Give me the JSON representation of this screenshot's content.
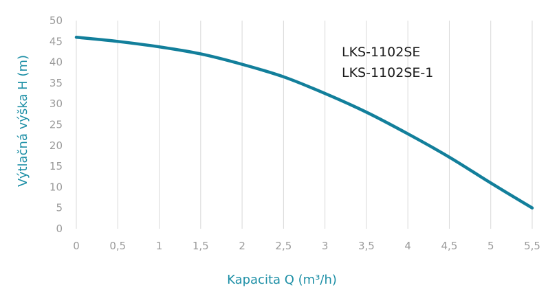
{
  "chart_data": {
    "type": "line",
    "title": "",
    "xlabel": "Kapacita Q (m³/h)",
    "ylabel": "Výtlačná výška H (m)",
    "xlim": [
      0,
      5.5
    ],
    "ylim": [
      0,
      50
    ],
    "x_ticks": [
      "0",
      "0,5",
      "1",
      "1,5",
      "2",
      "2,5",
      "3",
      "3,5",
      "4",
      "4,5",
      "5",
      "5,5"
    ],
    "y_ticks": [
      "0",
      "5",
      "10",
      "15",
      "20",
      "25",
      "30",
      "35",
      "40",
      "45",
      "50"
    ],
    "grid": "vertical",
    "annotations": [
      "LKS-1102SE",
      "LKS-1102SE-1"
    ],
    "series": [
      {
        "color": "#127f9b",
        "x": [
          0,
          0.5,
          1,
          1.5,
          2,
          2.5,
          3,
          3.5,
          4,
          4.5,
          5,
          5.5
        ],
        "y": [
          46,
          45,
          43.7,
          42,
          39.5,
          36.5,
          32.5,
          28,
          22.8,
          17.2,
          11,
          5
        ]
      }
    ]
  }
}
